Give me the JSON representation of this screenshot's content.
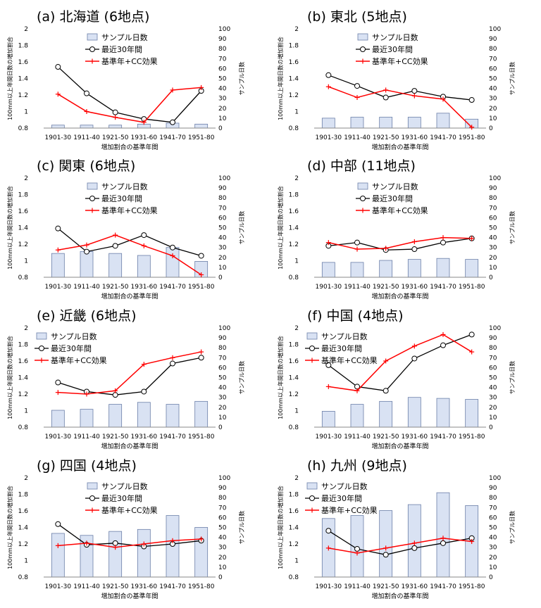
{
  "legend_labels": {
    "bars": "サンプル日数",
    "recent": "最近30年間",
    "base": "基準年+CC効果"
  },
  "axis_labels": {
    "y_left": "100mm以上年間日数の増加割合",
    "y_right": "サンプル日数",
    "x": "増加割合の基準年間"
  },
  "colors": {
    "bar_fill": "#d9e2f3",
    "bar_stroke": "#6b7fa8",
    "recent_line": "#000000",
    "base_line": "#ff0000"
  },
  "chart_data": [
    {
      "type": "bar+line",
      "title": "(a) 北海道 (6地点)",
      "categories": [
        "1901-30",
        "1911-40",
        "1921-50",
        "1931-60",
        "1941-70",
        "1951-80"
      ],
      "ylim_left": [
        0.8,
        2.0
      ],
      "ylim_right": [
        0,
        100
      ],
      "y_left_ticks": [
        "0.8",
        "1",
        "1.2",
        "1.4",
        "1.6",
        "1.8",
        "2"
      ],
      "y_right_ticks": [
        "0",
        "10",
        "20",
        "30",
        "40",
        "50",
        "60",
        "70",
        "80",
        "90",
        "100"
      ],
      "legend_position": "top-center",
      "series": [
        {
          "name": "サンプル日数",
          "kind": "bar",
          "axis": "right",
          "values": [
            3,
            3,
            3,
            4,
            5,
            4
          ]
        },
        {
          "name": "最近30年間",
          "kind": "line",
          "marker": "circle",
          "axis": "left",
          "values": [
            1.54,
            1.22,
            0.99,
            0.91,
            0.87,
            1.25
          ]
        },
        {
          "name": "基準年+CC効果",
          "kind": "line",
          "marker": "plus",
          "axis": "left",
          "values": [
            1.21,
            1.0,
            0.93,
            0.87,
            1.26,
            1.29
          ]
        }
      ]
    },
    {
      "type": "bar+line",
      "title": "(b) 東北 (5地点)",
      "categories": [
        "1901-30",
        "1911-40",
        "1921-50",
        "1931-60",
        "1941-70",
        "1951-80"
      ],
      "ylim_left": [
        0.8,
        2.0
      ],
      "ylim_right": [
        0,
        100
      ],
      "y_left_ticks": [
        "0.8",
        "1",
        "1.2",
        "1.4",
        "1.6",
        "1.8",
        "2"
      ],
      "y_right_ticks": [
        "0",
        "10",
        "20",
        "30",
        "40",
        "50",
        "60",
        "70",
        "80",
        "90",
        "100"
      ],
      "legend_position": "top-center",
      "series": [
        {
          "name": "サンプル日数",
          "kind": "bar",
          "axis": "right",
          "values": [
            10,
            11,
            11,
            11,
            15,
            9
          ]
        },
        {
          "name": "最近30年間",
          "kind": "line",
          "marker": "circle",
          "axis": "left",
          "values": [
            1.44,
            1.31,
            1.17,
            1.25,
            1.18,
            1.14
          ]
        },
        {
          "name": "基準年+CC効果",
          "kind": "line",
          "marker": "plus",
          "axis": "left",
          "values": [
            1.3,
            1.17,
            1.26,
            1.19,
            1.15,
            0.81
          ]
        }
      ]
    },
    {
      "type": "bar+line",
      "title": "(c) 関東 (6地点)",
      "categories": [
        "1901-30",
        "1911-40",
        "1921-50",
        "1931-60",
        "1941-70",
        "1951-80"
      ],
      "ylim_left": [
        0.8,
        2.0
      ],
      "ylim_right": [
        0,
        100
      ],
      "y_left_ticks": [
        "0.8",
        "1",
        "1.2",
        "1.4",
        "1.6",
        "1.8",
        "2"
      ],
      "y_right_ticks": [
        "0",
        "10",
        "20",
        "30",
        "40",
        "50",
        "60",
        "70",
        "80",
        "90",
        "100"
      ],
      "legend_position": "top-center",
      "series": [
        {
          "name": "サンプル日数",
          "kind": "bar",
          "axis": "right",
          "values": [
            24,
            26,
            24,
            22,
            30,
            16
          ]
        },
        {
          "name": "最近30年間",
          "kind": "line",
          "marker": "circle",
          "axis": "left",
          "values": [
            1.39,
            1.11,
            1.18,
            1.31,
            1.16,
            1.06
          ]
        },
        {
          "name": "基準年+CC効果",
          "kind": "line",
          "marker": "plus",
          "axis": "left",
          "values": [
            1.13,
            1.19,
            1.31,
            1.18,
            1.06,
            0.83
          ]
        }
      ]
    },
    {
      "type": "bar+line",
      "title": "(d) 中部 (11地点)",
      "categories": [
        "1901-30",
        "1911-40",
        "1921-50",
        "1931-60",
        "1941-70",
        "1951-80"
      ],
      "ylim_left": [
        0.8,
        2.0
      ],
      "ylim_right": [
        0,
        100
      ],
      "y_left_ticks": [
        "0.8",
        "1",
        "1.2",
        "1.4",
        "1.6",
        "1.8",
        "2"
      ],
      "y_right_ticks": [
        "0",
        "10",
        "20",
        "30",
        "40",
        "50",
        "60",
        "70",
        "80",
        "90",
        "100"
      ],
      "legend_position": "top-center",
      "series": [
        {
          "name": "サンプル日数",
          "kind": "bar",
          "axis": "right",
          "values": [
            15,
            15,
            17,
            18,
            19,
            18
          ]
        },
        {
          "name": "最近30年間",
          "kind": "line",
          "marker": "circle",
          "axis": "left",
          "values": [
            1.18,
            1.22,
            1.13,
            1.14,
            1.22,
            1.27
          ]
        },
        {
          "name": "基準年+CC効果",
          "kind": "line",
          "marker": "plus",
          "axis": "left",
          "values": [
            1.22,
            1.14,
            1.15,
            1.23,
            1.28,
            1.27
          ]
        }
      ]
    },
    {
      "type": "bar+line",
      "title": "(e) 近畿 (6地点)",
      "categories": [
        "1901-30",
        "1911-40",
        "1921-50",
        "1931-60",
        "1941-70",
        "1951-80"
      ],
      "ylim_left": [
        0.8,
        2.0
      ],
      "ylim_right": [
        0,
        100
      ],
      "y_left_ticks": [
        "0.8",
        "1",
        "1.2",
        "1.4",
        "1.6",
        "1.8",
        "2"
      ],
      "y_right_ticks": [
        "0",
        "10",
        "20",
        "30",
        "40",
        "50",
        "60",
        "70",
        "80",
        "90",
        "100"
      ],
      "legend_position": "top-left",
      "series": [
        {
          "name": "サンプル日数",
          "kind": "bar",
          "axis": "right",
          "values": [
            17,
            18,
            23,
            25,
            23,
            26
          ]
        },
        {
          "name": "最近30年間",
          "kind": "line",
          "marker": "circle",
          "axis": "left",
          "values": [
            1.34,
            1.23,
            1.19,
            1.23,
            1.57,
            1.64
          ]
        },
        {
          "name": "基準年+CC効果",
          "kind": "line",
          "marker": "plus",
          "axis": "left",
          "values": [
            1.22,
            1.2,
            1.24,
            1.56,
            1.64,
            1.71
          ]
        }
      ]
    },
    {
      "type": "bar+line",
      "title": "(f) 中国 (4地点)",
      "categories": [
        "1901-30",
        "1911-40",
        "1921-50",
        "1931-60",
        "1941-70",
        "1951-80"
      ],
      "ylim_left": [
        0.8,
        2.0
      ],
      "ylim_right": [
        0,
        100
      ],
      "y_left_ticks": [
        "0.8",
        "1",
        "1.2",
        "1.4",
        "1.6",
        "1.8",
        "2"
      ],
      "y_right_ticks": [
        "0",
        "10",
        "20",
        "30",
        "40",
        "50",
        "60",
        "70",
        "80",
        "90",
        "100"
      ],
      "legend_position": "top-left",
      "series": [
        {
          "name": "サンプル日数",
          "kind": "bar",
          "axis": "right",
          "values": [
            16,
            23,
            26,
            30,
            29,
            28
          ]
        },
        {
          "name": "最近30年間",
          "kind": "line",
          "marker": "circle",
          "axis": "left",
          "values": [
            1.55,
            1.29,
            1.24,
            1.63,
            1.79,
            1.92
          ]
        },
        {
          "name": "基準年+CC効果",
          "kind": "line",
          "marker": "plus",
          "axis": "left",
          "values": [
            1.29,
            1.24,
            1.6,
            1.78,
            1.92,
            1.71
          ]
        }
      ]
    },
    {
      "type": "bar+line",
      "title": "(g) 四国 (4地点)",
      "categories": [
        "1901-30",
        "1911-40",
        "1921-50",
        "1931-60",
        "1941-70",
        "1951-80"
      ],
      "ylim_left": [
        0.8,
        2.0
      ],
      "ylim_right": [
        0,
        100
      ],
      "y_left_ticks": [
        "0.8",
        "1",
        "1.2",
        "1.4",
        "1.6",
        "1.8",
        "2"
      ],
      "y_right_ticks": [
        "0",
        "10",
        "20",
        "30",
        "40",
        "50",
        "60",
        "70",
        "80",
        "90",
        "100"
      ],
      "legend_position": "top-center",
      "series": [
        {
          "name": "サンプル日数",
          "kind": "bar",
          "axis": "right",
          "values": [
            44,
            42,
            46,
            48,
            62,
            50
          ]
        },
        {
          "name": "最近30年間",
          "kind": "line",
          "marker": "circle",
          "axis": "left",
          "values": [
            1.44,
            1.19,
            1.21,
            1.17,
            1.2,
            1.24
          ]
        },
        {
          "name": "基準年+CC効果",
          "kind": "line",
          "marker": "plus",
          "axis": "left",
          "values": [
            1.18,
            1.21,
            1.16,
            1.2,
            1.24,
            1.26
          ]
        }
      ]
    },
    {
      "type": "bar+line",
      "title": "(h) 九州 (9地点)",
      "categories": [
        "1901-30",
        "1911-40",
        "1921-50",
        "1931-60",
        "1941-70",
        "1951-80"
      ],
      "ylim_left": [
        0.8,
        2.0
      ],
      "ylim_right": [
        0,
        100
      ],
      "y_left_ticks": [
        "0.8",
        "1",
        "1.2",
        "1.4",
        "1.6",
        "1.8",
        "2"
      ],
      "y_right_ticks": [
        "0",
        "10",
        "20",
        "30",
        "40",
        "50",
        "60",
        "70",
        "80",
        "90",
        "100"
      ],
      "legend_position": "top-left",
      "series": [
        {
          "name": "サンプル日数",
          "kind": "bar",
          "axis": "right",
          "values": [
            59,
            62,
            67,
            73,
            85,
            72
          ]
        },
        {
          "name": "最近30年間",
          "kind": "line",
          "marker": "circle",
          "axis": "left",
          "values": [
            1.36,
            1.14,
            1.07,
            1.15,
            1.21,
            1.27
          ]
        },
        {
          "name": "基準年+CC効果",
          "kind": "line",
          "marker": "plus",
          "axis": "left",
          "values": [
            1.15,
            1.09,
            1.15,
            1.21,
            1.27,
            1.23
          ]
        }
      ]
    }
  ]
}
